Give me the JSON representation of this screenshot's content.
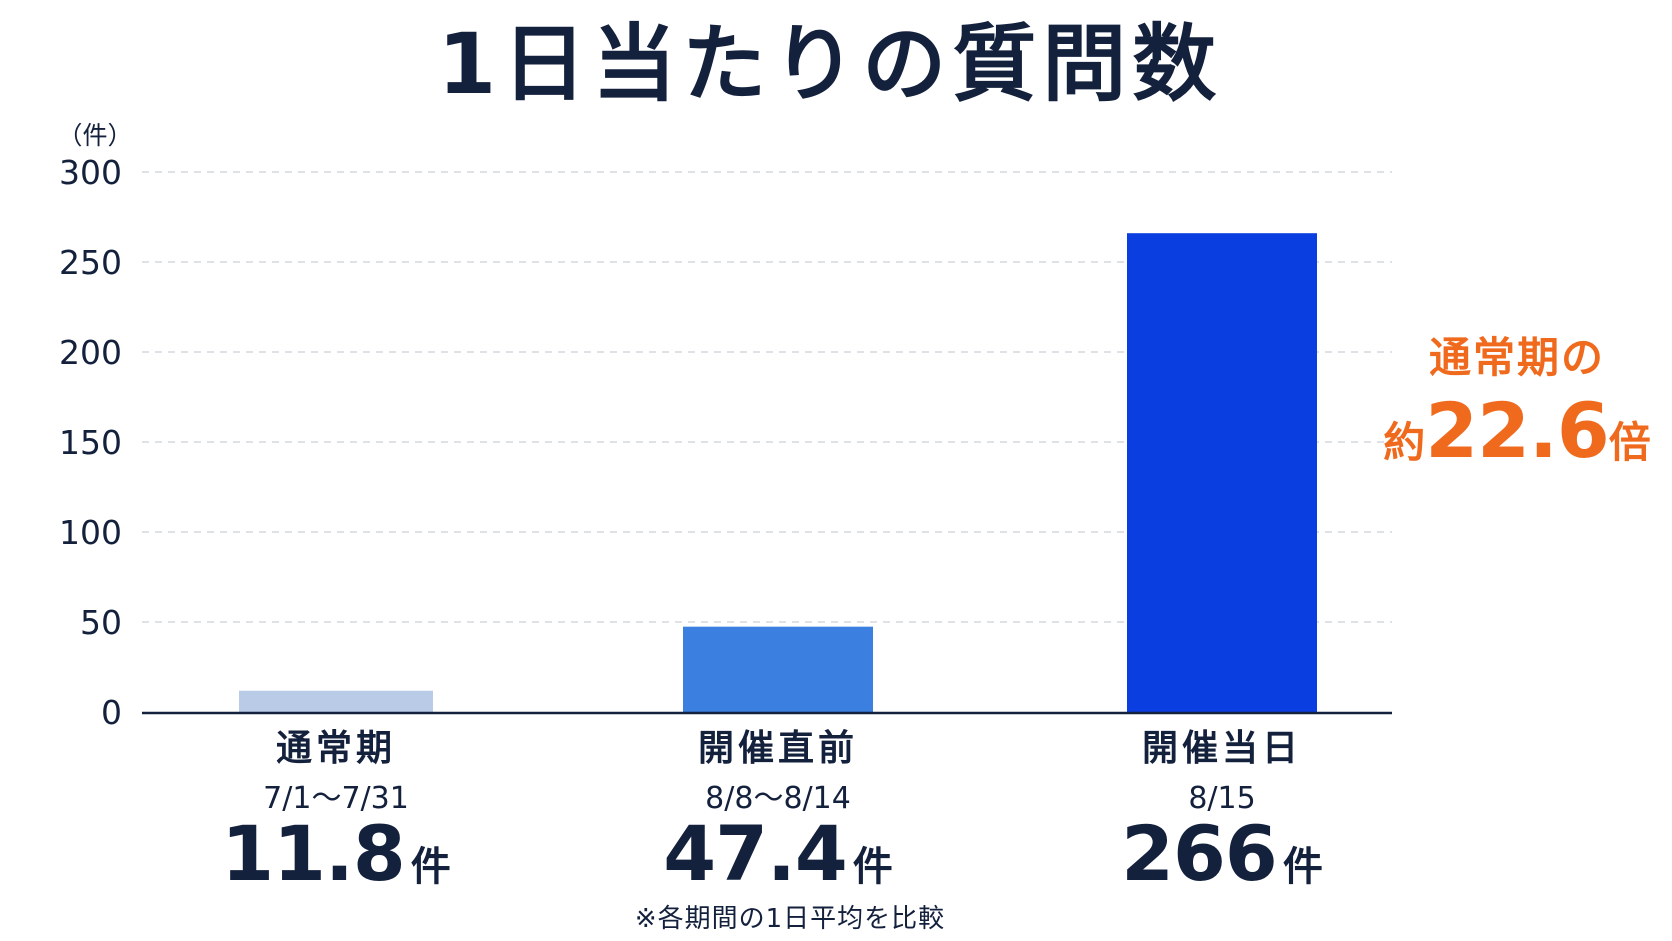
{
  "chart_data": {
    "type": "bar",
    "title": "1日当たりの質問数",
    "unit_label": "（件）",
    "ylim": [
      0,
      300
    ],
    "yticks": [
      0,
      50,
      100,
      150,
      200,
      250,
      300
    ],
    "grid": true,
    "categories": [
      "通常期",
      "開催直前",
      "開催当日"
    ],
    "periods": [
      "7/1〜7/31",
      "8/8〜8/14",
      "8/15"
    ],
    "values": [
      11.8,
      47.4,
      266
    ],
    "value_labels": [
      "11.8",
      "47.4",
      "266"
    ],
    "value_unit": "件",
    "bar_colors": [
      "#b9cbe6",
      "#3b7fe0",
      "#0a3ee0"
    ]
  },
  "callout": {
    "line1": "通常期の",
    "prefix": "約",
    "value": "22.6",
    "suffix": "倍",
    "color": "#f06a1d"
  },
  "footnote": "※各期間の1日平均を比較",
  "colors": {
    "text": "#14213d",
    "grid": "#d4d8de",
    "axis": "#14213d"
  }
}
